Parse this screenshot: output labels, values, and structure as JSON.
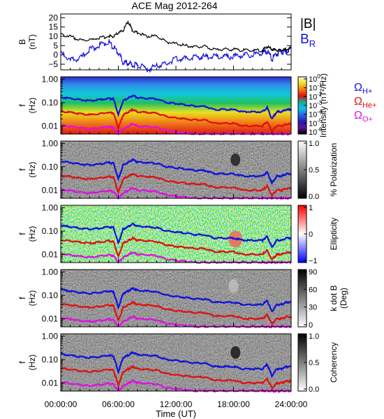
{
  "chart_data": [
    {
      "type": "line",
      "title": "ACE Mag 2012-264",
      "ylabel": "B",
      "yunit": "(nT)",
      "ylim": [
        -8,
        22
      ],
      "yticks": [
        -5,
        0,
        5,
        10,
        15,
        20
      ],
      "x_hours": [
        0,
        1,
        2,
        3,
        4,
        5,
        5.5,
        6,
        6.5,
        7,
        7.5,
        8,
        9,
        10,
        11,
        12,
        13,
        14,
        15,
        16,
        17,
        18,
        19,
        20,
        21,
        21.5,
        22,
        22.5,
        23,
        23.5,
        24
      ],
      "series": [
        {
          "name": "|B|",
          "color": "#000000",
          "values": [
            11,
            10,
            8,
            8,
            9,
            10,
            10,
            12,
            13,
            18,
            13,
            12,
            10,
            10,
            7,
            6,
            5,
            4.5,
            4.5,
            3,
            3,
            3,
            2.5,
            2.5,
            2.5,
            4.5,
            3,
            2.5,
            2.5,
            3,
            4
          ]
        },
        {
          "name": "B_R",
          "color": "#1010e0",
          "values": [
            1,
            -3,
            -2,
            3,
            5,
            7,
            4,
            1,
            -4,
            -4,
            -6,
            -5,
            -8,
            -6,
            -5,
            -2,
            -2,
            -1,
            -1,
            -1,
            -1,
            -1,
            0,
            0,
            1.5,
            2,
            -2,
            0.5,
            2,
            2,
            3
          ]
        }
      ],
      "legend": [
        "|B|",
        "B",
        "R"
      ]
    },
    {
      "type": "heatmap",
      "ylabel": "f",
      "yunit": "(Hz)",
      "yscale": "log",
      "ylim": [
        0.0045,
        1.25
      ],
      "yticks": [
        "1.00",
        "0.10",
        "0.01"
      ],
      "colorbar_label": "Intensity (nT²/Hz)",
      "colorbar_ticks": [
        "10",
        "10",
        "10",
        "10",
        "10",
        "10",
        "10"
      ],
      "colorbar_exps": [
        "0",
        "-1",
        "-2",
        "-3",
        "-4",
        "-5",
        "-6"
      ],
      "colorbar_colors": [
        "#f7f7f0",
        "#f0e020",
        "#f08010",
        "#e01010",
        "#10b0a0",
        "#10c0e0",
        "#3060f0",
        "#2020b0",
        "#601090",
        "#000000"
      ],
      "legend": [
        {
          "symbol": "Ω",
          "sub": "H+",
          "color": "#1010e0"
        },
        {
          "symbol": "Ω",
          "sub": "He+",
          "color": "#e01010"
        },
        {
          "symbol": "Ω",
          "sub": "O+",
          "color": "#e010e0"
        }
      ]
    },
    {
      "type": "heatmap",
      "ylabel": "f",
      "yunit": "(Hz)",
      "yscale": "log",
      "ylim": [
        0.0045,
        1.25
      ],
      "yticks": [
        "1.00",
        "0.10",
        "0.01"
      ],
      "colorbar_label": "% Polarization",
      "colorbar_ticks": [
        "1.0",
        "0.5",
        "0.0"
      ],
      "colorbar_colors": [
        "#ffffff",
        "#000000"
      ]
    },
    {
      "type": "heatmap",
      "ylabel": "f",
      "yunit": "(Hz)",
      "yscale": "log",
      "ylim": [
        0.0045,
        1.25
      ],
      "yticks": [
        "1.00",
        "0.10",
        "0.01"
      ],
      "colorbar_label": "Ellipticity",
      "colorbar_ticks": [
        "1",
        "0",
        "−1"
      ],
      "colorbar_colors": [
        "#ff0000",
        "#ffffff",
        "#0000ff"
      ]
    },
    {
      "type": "heatmap",
      "ylabel": "f",
      "yunit": "(Hz)",
      "yscale": "log",
      "ylim": [
        0.0045,
        1.25
      ],
      "yticks": [
        "1.00",
        "0.10",
        "0.01"
      ],
      "colorbar_label": "k dot B",
      "colorbar_unit": "(Deg)",
      "colorbar_ticks": [
        "90",
        "60",
        "30",
        "0"
      ],
      "colorbar_colors": [
        "#000000",
        "#ffffff"
      ]
    },
    {
      "type": "heatmap",
      "ylabel": "f",
      "yunit": "(Hz)",
      "yscale": "log",
      "ylim": [
        0.0045,
        1.25
      ],
      "yticks": [
        "1.00",
        "0.10",
        "0.01"
      ],
      "colorbar_label": "Coherency",
      "colorbar_ticks": [
        "1.0",
        "0.5",
        "0.0"
      ],
      "colorbar_colors": [
        "#000000",
        "#ffffff"
      ]
    }
  ],
  "gyrofrequency_lines": {
    "x_hours": [
      0,
      1,
      2,
      3,
      4,
      5,
      5.5,
      6,
      6.5,
      7,
      7.5,
      8,
      9,
      10,
      11,
      12,
      13,
      14,
      15,
      16,
      17,
      18,
      19,
      20,
      21,
      21.5,
      22,
      22.5,
      23,
      23.5,
      24
    ],
    "series": [
      {
        "name": "H+",
        "color": "#1010e0",
        "values_hz": [
          0.17,
          0.15,
          0.13,
          0.12,
          0.13,
          0.15,
          0.14,
          0.03,
          0.12,
          0.15,
          0.2,
          0.16,
          0.15,
          0.14,
          0.1,
          0.09,
          0.08,
          0.07,
          0.07,
          0.05,
          0.05,
          0.05,
          0.04,
          0.04,
          0.04,
          0.06,
          0.02,
          0.04,
          0.04,
          0.05,
          0.05
        ]
      },
      {
        "name": "He+",
        "color": "#e01010",
        "values_hz": [
          0.042,
          0.038,
          0.033,
          0.03,
          0.033,
          0.038,
          0.035,
          0.008,
          0.03,
          0.038,
          0.05,
          0.04,
          0.038,
          0.035,
          0.025,
          0.022,
          0.02,
          0.018,
          0.018,
          0.013,
          0.013,
          0.013,
          0.01,
          0.01,
          0.01,
          0.015,
          0.006,
          0.01,
          0.01,
          0.012,
          0.012
        ]
      },
      {
        "name": "O+",
        "color": "#e010e0",
        "values_hz": [
          0.011,
          0.0095,
          0.0083,
          0.0075,
          0.0083,
          0.0095,
          0.0088,
          0.0046,
          0.0075,
          0.0095,
          0.0125,
          0.01,
          0.0095,
          0.0088,
          0.0063,
          0.0055,
          0.005,
          0.0046,
          0.0046,
          0.0046,
          0.0046,
          0.0046,
          0.0046,
          0.0046,
          0.0046,
          0.0046,
          0.0046,
          0.0046,
          0.0046,
          0.0046,
          0.0046
        ]
      }
    ]
  },
  "x_axis": {
    "label": "Time (UT)",
    "xlim": [
      0,
      24
    ],
    "tick_hours": [
      0,
      6,
      12,
      18,
      24
    ],
    "tick_labels": [
      "00:00:00",
      "06:00:00",
      "12:00:00",
      "18:00:00",
      "24:00:00"
    ]
  }
}
